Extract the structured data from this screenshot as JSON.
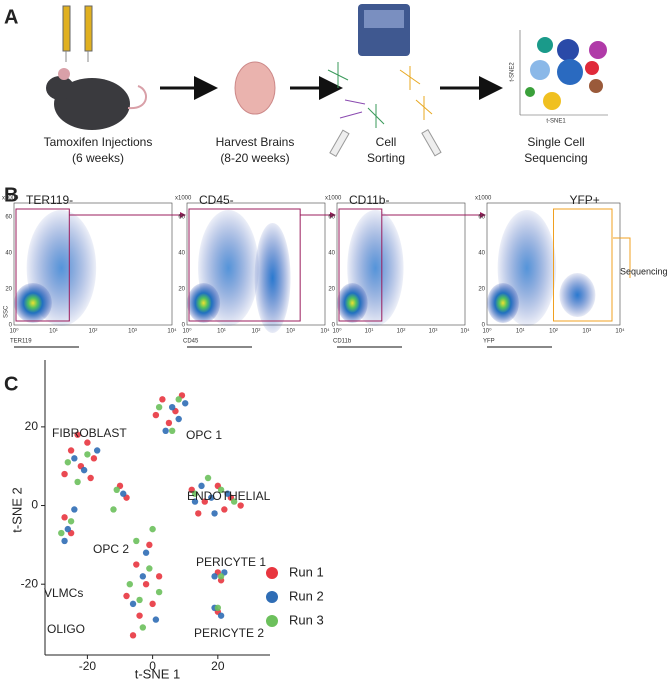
{
  "panel_a": {
    "label": "A",
    "steps": [
      "Tamoxifen Injections",
      "(6 weeks)",
      "Harvest Brains",
      "(8-20 weeks)",
      "Cell",
      "Sorting",
      "Single Cell",
      "Sequencing"
    ],
    "mini_axes": [
      "t-SNE1",
      "t-SNE2"
    ]
  },
  "panel_b": {
    "label": "B",
    "gates": [
      "TER119-",
      "CD45-",
      "CD11b-",
      "YFP+"
    ],
    "x_labels": [
      "TER119",
      "CD45",
      "CD11b",
      "YFP"
    ],
    "y_label": "SSC",
    "y_unit": "x1000",
    "y_ticks": [
      "0",
      "20",
      "40",
      "60"
    ],
    "x_ticks": [
      "10⁰",
      "10¹",
      "10²",
      "10³",
      "10⁴"
    ],
    "output": "Sequencing"
  },
  "chart_data": {
    "type": "scatter",
    "panel_label": "C",
    "x_label": "t-SNE 1",
    "y_label": "t-SNE 2",
    "xlim": [
      -33,
      36
    ],
    "ylim": [
      -38,
      37
    ],
    "xticks": [
      -20,
      0,
      20
    ],
    "yticks": [
      -20,
      0,
      20
    ],
    "legend": "right",
    "annotations": [
      {
        "text": "FIBROBLAST",
        "color": "#f2a7c9"
      },
      {
        "text": "OPC 1",
        "color": "#d9283a"
      },
      {
        "text": "ENDOTHELIAL",
        "color": "#3a78b5"
      },
      {
        "text": "OPC 2",
        "color": "#7b4b98"
      },
      {
        "text": "VLMCs",
        "color": "#3ea35a"
      },
      {
        "text": "OLIGO",
        "color": "#e8782a"
      },
      {
        "text": "PERICYTE 1",
        "color": "#8b5a3c"
      },
      {
        "text": "PERICYTE 2",
        "color": "#f0bf2c"
      }
    ],
    "series": [
      {
        "name": "Run 1",
        "color": "#e8353f",
        "x": [
          -25,
          -20,
          -22,
          -18,
          -27,
          -23,
          -19,
          3,
          7,
          5,
          9,
          1,
          12,
          16,
          20,
          24,
          14,
          22,
          27,
          -10,
          -8,
          -27,
          -25,
          -5,
          -2,
          -8,
          0,
          -4,
          -6,
          2,
          -1,
          20,
          21,
          20
        ],
        "values": [
          14,
          16,
          10,
          12,
          8,
          18,
          7,
          27,
          24,
          21,
          28,
          23,
          4,
          1,
          5,
          2,
          -2,
          -1,
          0,
          5,
          2,
          -3,
          -7,
          -15,
          -20,
          -23,
          -25,
          -28,
          -33,
          -18,
          -10,
          -17,
          -19,
          -27
        ]
      },
      {
        "name": "Run 2",
        "color": "#2f6db5",
        "x": [
          -24,
          -21,
          -17,
          6,
          8,
          4,
          10,
          15,
          18,
          23,
          19,
          13,
          -9,
          -26,
          -24,
          -27,
          -3,
          -6,
          1,
          -2,
          19,
          22,
          21,
          19
        ],
        "values": [
          12,
          9,
          14,
          25,
          22,
          19,
          26,
          5,
          2,
          3,
          -2,
          1,
          3,
          -6,
          -1,
          -9,
          -18,
          -25,
          -29,
          -12,
          -18,
          -17,
          -28,
          -26
        ]
      },
      {
        "name": "Run 3",
        "color": "#6cc05c",
        "x": [
          -26,
          -20,
          -23,
          2,
          8,
          6,
          17,
          21,
          25,
          13,
          -11,
          -28,
          -25,
          -7,
          -1,
          -4,
          2,
          -3,
          -5,
          0,
          21,
          20,
          -12
        ],
        "values": [
          11,
          13,
          6,
          25,
          27,
          19,
          7,
          4,
          1,
          3,
          4,
          -7,
          -4,
          -20,
          -16,
          -24,
          -22,
          -31,
          -9,
          -6,
          -18,
          -26,
          -1
        ]
      }
    ]
  }
}
